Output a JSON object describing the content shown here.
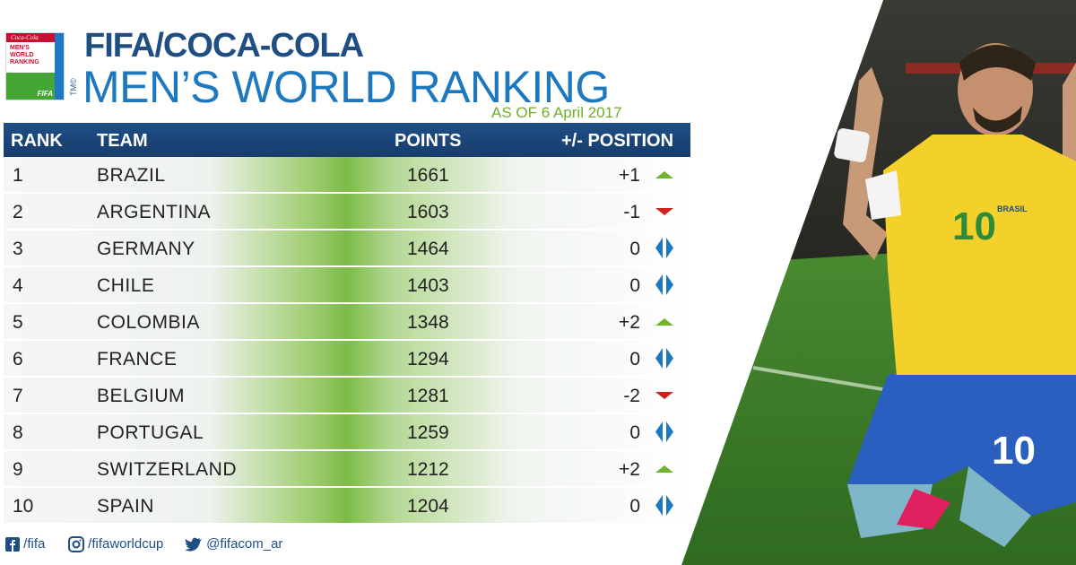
{
  "header": {
    "logo_lines": [
      "MEN'S",
      "WORLD",
      "RANKING"
    ],
    "logo_brand": "Coca-Cola",
    "logo_fifa": "FIFA",
    "tm": "TM©",
    "title_line1": "FIFA/COCA-COLA",
    "title_line2": "MEN’S WORLD RANKING",
    "as_of": "AS OF 6 April 2017"
  },
  "table": {
    "headers": {
      "rank": "RANK",
      "team": "TEAM",
      "points": "POINTS",
      "change": "+/- POSITION"
    },
    "rows": [
      {
        "rank": "1",
        "team": "BRAZIL",
        "points": "1661",
        "change": "+1",
        "trend": "up"
      },
      {
        "rank": "2",
        "team": "ARGENTINA",
        "points": "1603",
        "change": "-1",
        "trend": "down"
      },
      {
        "rank": "3",
        "team": "GERMANY",
        "points": "1464",
        "change": "0",
        "trend": "same"
      },
      {
        "rank": "4",
        "team": "CHILE",
        "points": "1403",
        "change": "0",
        "trend": "same"
      },
      {
        "rank": "5",
        "team": "COLOMBIA",
        "points": "1348",
        "change": "+2",
        "trend": "up"
      },
      {
        "rank": "6",
        "team": "FRANCE",
        "points": "1294",
        "change": "0",
        "trend": "same"
      },
      {
        "rank": "7",
        "team": "BELGIUM",
        "points": "1281",
        "change": "-2",
        "trend": "down"
      },
      {
        "rank": "8",
        "team": "PORTUGAL",
        "points": "1259",
        "change": "0",
        "trend": "same"
      },
      {
        "rank": "9",
        "team": "SWITZERLAND",
        "points": "1212",
        "change": "+2",
        "trend": "up"
      },
      {
        "rank": "10",
        "team": "SPAIN",
        "points": "1204",
        "change": "0",
        "trend": "same"
      }
    ]
  },
  "footer": {
    "facebook": "/fifa",
    "instagram": "/fifaworldcup",
    "twitter": "@fifacom_ar"
  },
  "photo": {
    "jersey_number": "10",
    "shorts_number": "10",
    "badge_text": "BRASIL"
  },
  "colors": {
    "title_dark_blue": "#1e4e84",
    "title_blue": "#1e78c0",
    "header_bar": "#1f4e86",
    "up": "#6fb52c",
    "down": "#d0201e",
    "same": "#1e78c0",
    "jersey_yellow": "#f3d12a",
    "shorts_blue": "#2a5fc0",
    "pitch_green": "#3f7a2a"
  }
}
